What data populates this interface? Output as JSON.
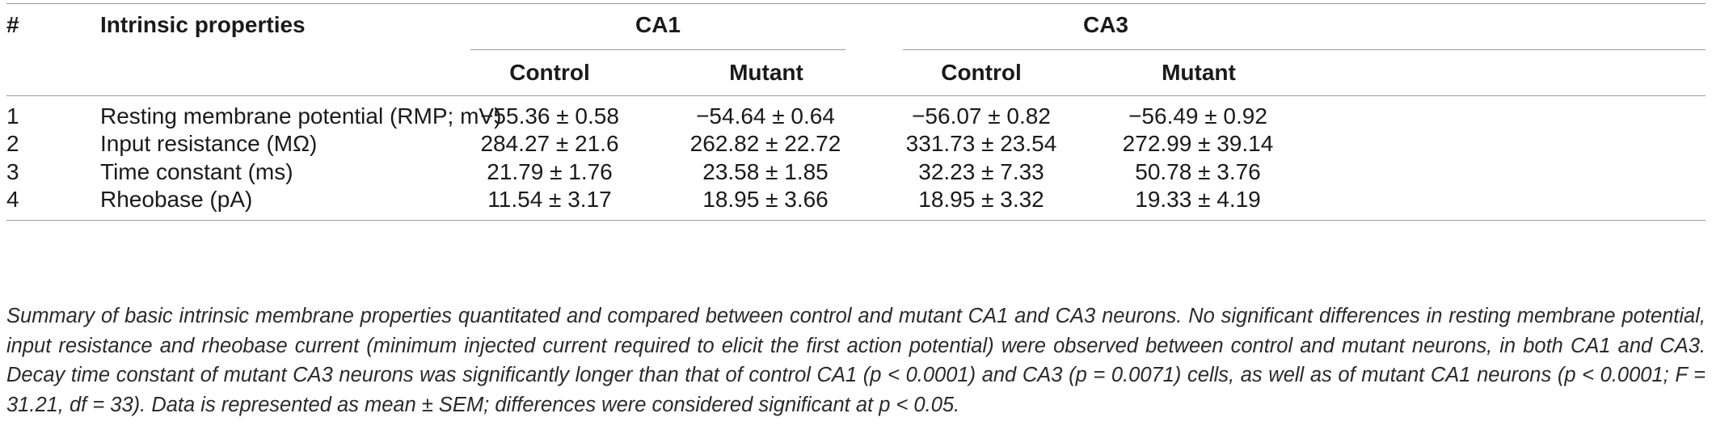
{
  "table": {
    "header": {
      "index": "#",
      "property": "Intrinsic properties",
      "group1": "CA1",
      "group2": "CA3",
      "control": "Control",
      "mutant": "Mutant"
    },
    "rows": [
      {
        "n": "1",
        "property": "Resting membrane potential (RMP; mV)",
        "ca1_control": "−55.36 ± 0.58",
        "ca1_mutant": "−54.64 ± 0.64",
        "ca3_control": "−56.07 ± 0.82",
        "ca3_mutant": "−56.49 ± 0.92"
      },
      {
        "n": "2",
        "property": "Input resistance (MΩ)",
        "ca1_control": "284.27 ± 21.6",
        "ca1_mutant": "262.82 ± 22.72",
        "ca3_control": "331.73 ± 23.54",
        "ca3_mutant": "272.99 ± 39.14"
      },
      {
        "n": "3",
        "property": "Time constant (ms)",
        "ca1_control": "21.79 ± 1.76",
        "ca1_mutant": "23.58 ± 1.85",
        "ca3_control": "32.23 ± 7.33",
        "ca3_mutant": "50.78 ± 3.76"
      },
      {
        "n": "4",
        "property": "Rheobase (pA)",
        "ca1_control": "11.54 ± 3.17",
        "ca1_mutant": "18.95 ± 3.66",
        "ca3_control": "18.95 ± 3.32",
        "ca3_mutant": "19.33 ± 4.19"
      }
    ]
  },
  "caption": "Summary of basic intrinsic membrane properties quantitated and compared between control and mutant CA1 and CA3 neurons. No significant differences in resting membrane potential, input resistance and rheobase current (minimum injected current required to elicit the first action potential) were observed between control and mutant neurons, in both CA1 and CA3. Decay time constant of mutant CA3 neurons was significantly longer than that of control CA1 (p < 0.0001) and CA3 (p = 0.0071) cells, as well as of mutant CA1 neurons (p < 0.0001; F = 31.21, df = 33). Data is represented as mean ± SEM; differences were considered significant at p < 0.05."
}
